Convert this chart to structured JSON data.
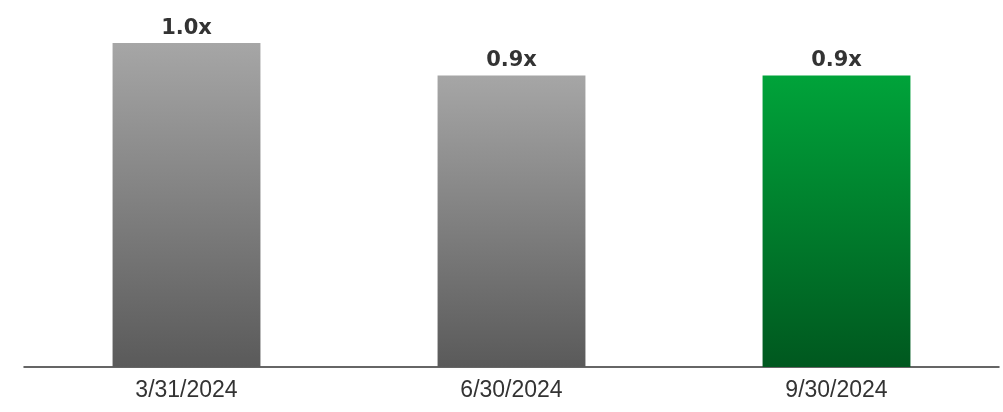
{
  "chart_data": {
    "type": "bar",
    "categories": [
      "3/31/2024",
      "6/30/2024",
      "9/30/2024"
    ],
    "values": [
      1.0,
      0.9,
      0.9
    ],
    "value_labels": [
      "1.0x",
      "0.9x",
      "0.9x"
    ],
    "colors": [
      "#a6a6a6",
      "#a6a6a6",
      "#00a33a"
    ]
  }
}
